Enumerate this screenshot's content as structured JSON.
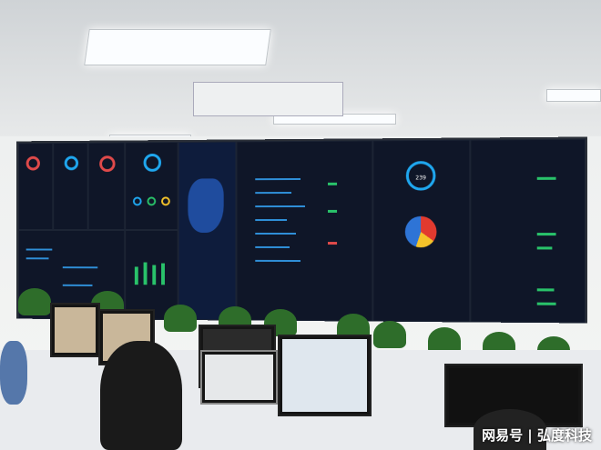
{
  "video_wall": {
    "center_value": "239",
    "accent": "#1fa7ef",
    "pie_colors": [
      "#e23a2f",
      "#f4c32a",
      "#2e74d6"
    ]
  },
  "watermark": "网易号 | 弘度科技"
}
